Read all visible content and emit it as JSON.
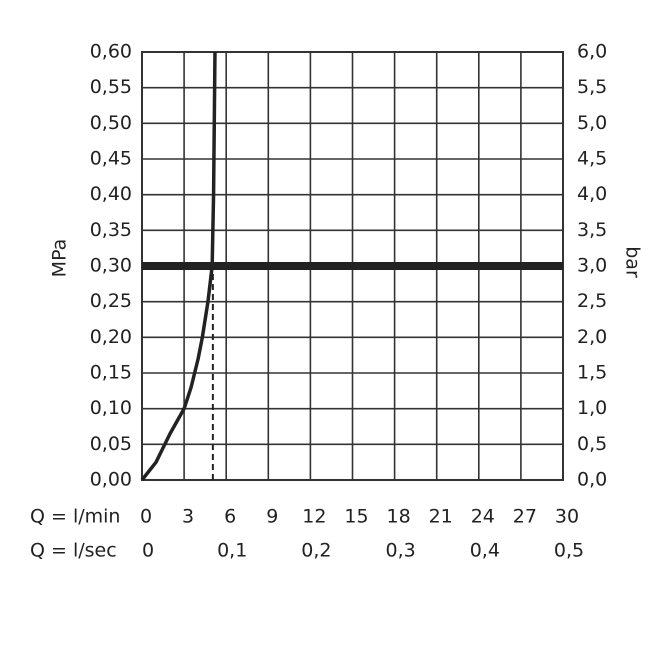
{
  "chart_data": {
    "type": "line",
    "ylabel": "MPa",
    "y2label": "bar",
    "xlabel": "Q = l/min",
    "x2label": "Q = l/sec",
    "x": [
      0,
      1,
      1.5,
      2,
      3,
      3.5,
      4,
      4.3,
      4.7,
      5,
      5.1,
      5.15,
      5.2
    ],
    "values": [
      0,
      0.025,
      0.045,
      0.065,
      0.1,
      0.13,
      0.17,
      0.2,
      0.25,
      0.3,
      0.4,
      0.5,
      0.6
    ],
    "color": "#222222",
    "xlim": [
      0,
      30
    ],
    "xticks": [
      0,
      3,
      6,
      9,
      12,
      15,
      18,
      21,
      24,
      27,
      30
    ],
    "x2lim": [
      0,
      0.5
    ],
    "x2ticks": [
      0,
      {
        "value": 0.1,
        "label": "0,1"
      },
      {
        "value": 0.2,
        "label": "0,2"
      },
      {
        "value": 0.3,
        "label": "0,3"
      },
      {
        "value": 0.4,
        "label": "0,4"
      },
      {
        "value": 0.5,
        "label": "0,5"
      }
    ],
    "ylim": [
      0,
      0.6
    ],
    "yticks": [
      {
        "value": 0,
        "label": "0,00"
      },
      {
        "value": 0.05,
        "label": "0,05"
      },
      {
        "value": 0.1,
        "label": "0,10"
      },
      {
        "value": 0.15,
        "label": "0,15"
      },
      {
        "value": 0.2,
        "label": "0,20"
      },
      {
        "value": 0.25,
        "label": "0,25"
      },
      {
        "value": 0.3,
        "label": "0,30"
      },
      {
        "value": 0.35,
        "label": "0,35"
      },
      {
        "value": 0.4,
        "label": "0,40"
      },
      {
        "value": 0.45,
        "label": "0,45"
      },
      {
        "value": 0.5,
        "label": "0,50"
      },
      {
        "value": 0.55,
        "label": "0,55"
      },
      {
        "value": 0.6,
        "label": "0,60"
      }
    ],
    "y2lim": [
      0,
      6
    ],
    "y2ticks": [
      {
        "value": 0,
        "label": "0,0"
      },
      {
        "value": 0.5,
        "label": "0,5"
      },
      {
        "value": 1,
        "label": "1,0"
      },
      {
        "value": 1.5,
        "label": "1,5"
      },
      {
        "value": 2,
        "label": "2,0"
      },
      {
        "value": 2.5,
        "label": "2,5"
      },
      {
        "value": 3,
        "label": "3,0"
      },
      {
        "value": 3.5,
        "label": "3,5"
      },
      {
        "value": 4,
        "label": "4,0"
      },
      {
        "value": 4.5,
        "label": "4,5"
      },
      {
        "value": 5,
        "label": "5,0"
      },
      {
        "value": 5.5,
        "label": "5,5"
      },
      {
        "value": 6,
        "label": "6,0"
      }
    ],
    "marker": {
      "x": 5.05,
      "y": 0.3
    },
    "grid": true
  }
}
